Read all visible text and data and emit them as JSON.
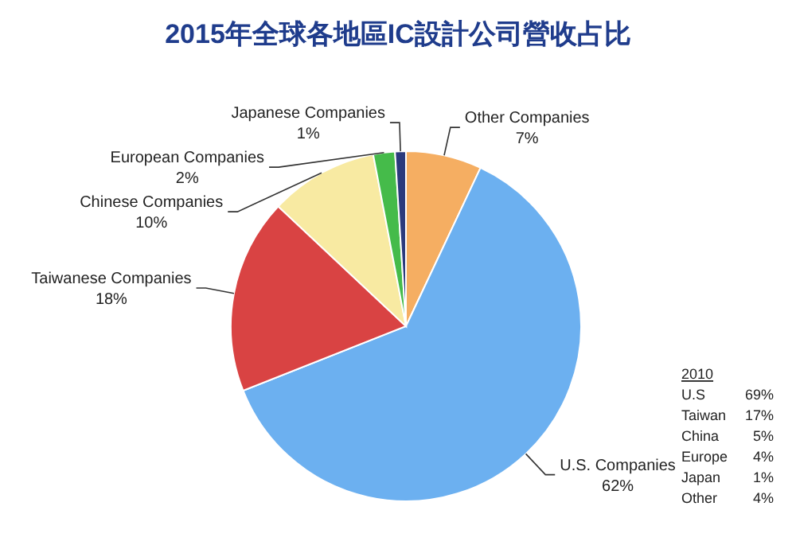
{
  "chart_data": {
    "type": "pie",
    "title": "2015年全球各地區IC設計公司營收占比",
    "categories": [
      "Other Companies",
      "U.S. Companies",
      "Taiwanese Companies",
      "Chinese Companies",
      "European Companies",
      "Japanese Companies"
    ],
    "values": [
      7,
      62,
      18,
      10,
      2,
      1
    ],
    "colors": [
      "#f5ae62",
      "#6cb0f0",
      "#d94343",
      "#f8eaa2",
      "#45bb4a",
      "#2b3a7c"
    ],
    "value_labels": [
      "7%",
      "62%",
      "18%",
      "10%",
      "2%",
      "1%"
    ],
    "annotations": [
      "2010",
      "U.S 69%",
      "Taiwan 17%",
      "China 5%",
      "Europe 4%",
      "Japan 1%",
      "Other 4%"
    ]
  }
}
